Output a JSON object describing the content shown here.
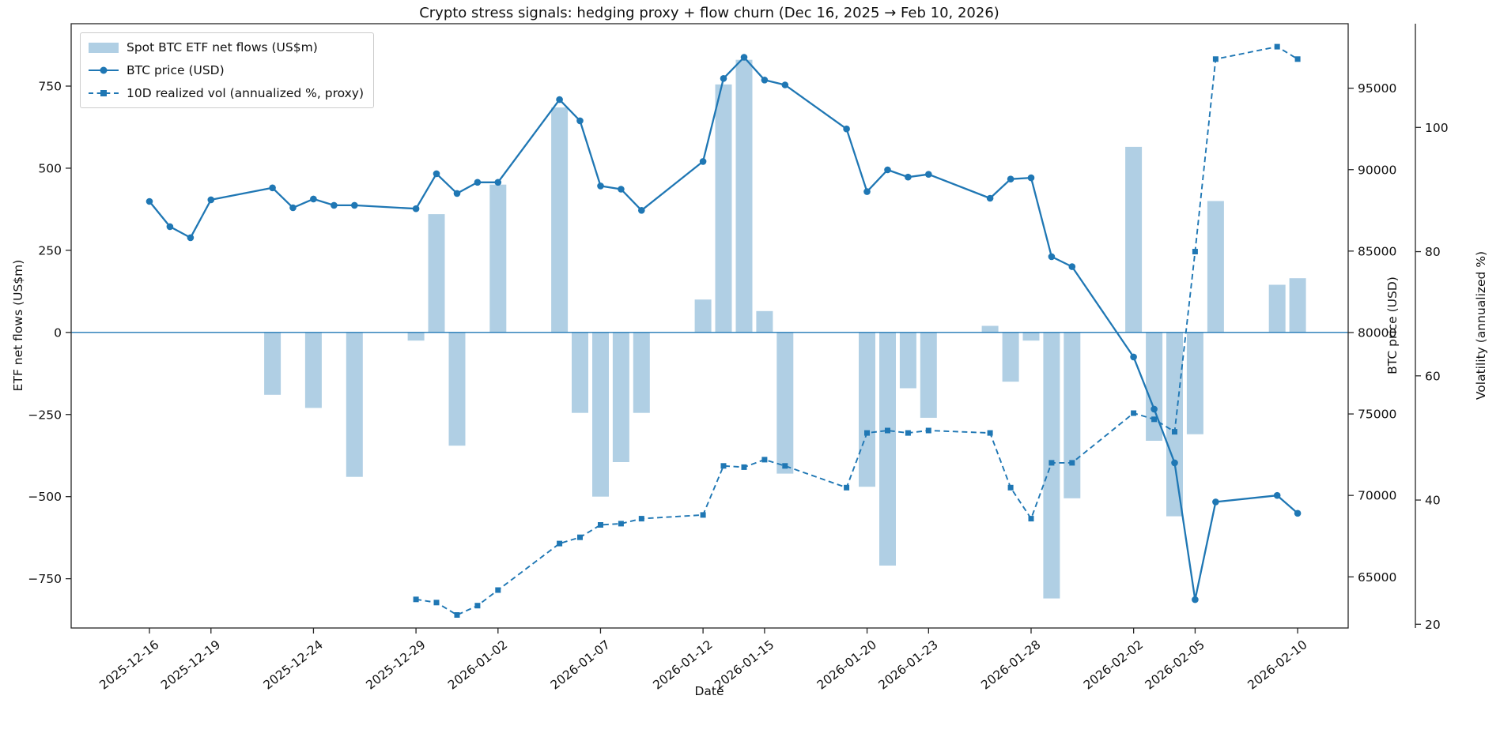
{
  "chart_data": {
    "type": "bar+line",
    "title": "Crypto stress signals: hedging proxy + flow churn (Dec 16, 2025 → Feb 10, 2026)",
    "xlabel": "Date",
    "ylabel_left": "ETF net flows (US$m)",
    "ylabel_right": "BTC price (USD)",
    "ylabel_far_right": "Volatility (annualized %)",
    "legend": [
      "Spot BTC ETF net flows (US$m)",
      "BTC price (USD)",
      "10D realized vol (annualized %, proxy)"
    ],
    "legend_position": "upper-left",
    "grid": "off",
    "x_dates": [
      "2025-12-16",
      "2025-12-17",
      "2025-12-18",
      "2025-12-19",
      "2025-12-22",
      "2025-12-23",
      "2025-12-24",
      "2025-12-25",
      "2025-12-26",
      "2025-12-29",
      "2025-12-30",
      "2025-12-31",
      "2026-01-01",
      "2026-01-02",
      "2026-01-05",
      "2026-01-06",
      "2026-01-07",
      "2026-01-08",
      "2026-01-09",
      "2026-01-12",
      "2026-01-13",
      "2026-01-14",
      "2026-01-15",
      "2026-01-16",
      "2026-01-19",
      "2026-01-20",
      "2026-01-21",
      "2026-01-22",
      "2026-01-23",
      "2026-01-26",
      "2026-01-27",
      "2026-01-28",
      "2026-01-29",
      "2026-01-30",
      "2026-02-02",
      "2026-02-03",
      "2026-02-04",
      "2026-02-05",
      "2026-02-06",
      "2026-02-09",
      "2026-02-10"
    ],
    "series": [
      {
        "name": "Spot BTC ETF net flows (US$m)",
        "type": "bar",
        "axis": "flows",
        "values": [
          0,
          0,
          0,
          0,
          -190,
          0,
          -230,
          0,
          -440,
          -25,
          360,
          -345,
          0,
          450,
          685,
          -245,
          -500,
          -395,
          -245,
          100,
          755,
          830,
          65,
          -430,
          0,
          -470,
          -710,
          -170,
          -260,
          20,
          -150,
          -25,
          -810,
          -505,
          565,
          -330,
          -560,
          -310,
          400,
          145,
          165
        ]
      },
      {
        "name": "BTC price (USD)",
        "type": "line",
        "axis": "price",
        "values": [
          88050,
          86500,
          85820,
          88150,
          88880,
          87660,
          88200,
          87810,
          87810,
          87600,
          89750,
          88540,
          89220,
          89220,
          94300,
          93000,
          89000,
          88800,
          87500,
          90500,
          95600,
          96900,
          95500,
          95200,
          92500,
          88650,
          89990,
          89540,
          89710,
          88240,
          89420,
          89500,
          84660,
          84040,
          78500,
          75300,
          72000,
          63600,
          69600,
          70000,
          68900
        ]
      },
      {
        "name": "10D realized vol (annualized %, proxy)",
        "type": "dashed-line",
        "axis": "vol",
        "values": [
          null,
          null,
          null,
          null,
          null,
          null,
          null,
          null,
          null,
          24,
          23.5,
          21.5,
          23,
          25.5,
          33,
          34,
          36,
          36.2,
          37,
          37.6,
          45.5,
          45.3,
          46.5,
          45.5,
          42,
          50.8,
          51.2,
          50.8,
          51.2,
          50.8,
          42,
          37,
          46,
          46,
          54,
          53,
          51,
          80,
          111,
          113,
          111
        ]
      }
    ],
    "axes": {
      "flows": {
        "ticks": [
          750,
          500,
          250,
          0,
          -250,
          -500,
          -750
        ],
        "tick_labels": [
          "750",
          "500",
          "250",
          "0",
          "−250",
          "−500",
          "−750"
        ],
        "lim": [
          -900,
          940
        ]
      },
      "price": {
        "ticks": [
          95000,
          90000,
          85000,
          80000,
          75000,
          70000,
          65000
        ],
        "tick_labels": [
          "95000",
          "90000",
          "85000",
          "80000",
          "75000",
          "70000",
          "65000"
        ],
        "lim": [
          61860,
          98960
        ]
      },
      "vol": {
        "ticks": [
          100,
          80,
          60,
          40,
          20
        ],
        "tick_labels": [
          "100",
          "80",
          "60",
          "40",
          "20"
        ],
        "lim": [
          19.4,
          116.7
        ]
      }
    },
    "x_ticks": [
      "2025-12-16",
      "2025-12-19",
      "2025-12-24",
      "2025-12-29",
      "2026-01-02",
      "2026-01-07",
      "2026-01-12",
      "2026-01-15",
      "2026-01-20",
      "2026-01-23",
      "2026-01-28",
      "2026-02-02",
      "2026-02-05",
      "2026-02-10"
    ],
    "colors": {
      "accent": "#1f77b4",
      "bar_fill": "#b0cfe4",
      "zero_line": "#1f77b4",
      "spine": "#262626",
      "text": "#111111"
    }
  }
}
